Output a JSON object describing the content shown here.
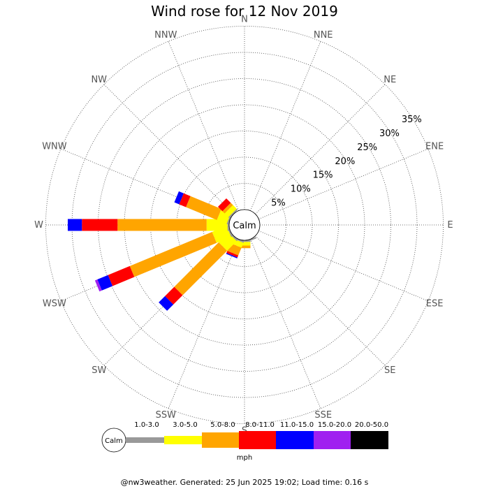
{
  "title": "Wind rose for 12 Nov 2019",
  "footer": "@nw3weather. Generated: 25 Jun 2025 19:02; Load time: 0.16 s",
  "chart_data": {
    "type": "windrose",
    "title": "Wind rose for 12 Nov 2019",
    "calm_label": "Calm",
    "units": "mph",
    "directions": [
      "N",
      "NNE",
      "NE",
      "ENE",
      "E",
      "ESE",
      "SE",
      "SSE",
      "S",
      "SSW",
      "SW",
      "WSW",
      "W",
      "WNW",
      "NW",
      "NNW"
    ],
    "radial_ticks": [
      "5%",
      "10%",
      "15%",
      "20%",
      "25%",
      "30%",
      "35%"
    ],
    "radial_values": [
      5,
      10,
      15,
      20,
      25,
      30,
      35
    ],
    "speed_bins": [
      {
        "label": "1.0-3.0",
        "color": "#999999"
      },
      {
        "label": "3.0-5.0",
        "color": "#ffff00"
      },
      {
        "label": "5.0-8.0",
        "color": "#ffa500"
      },
      {
        "label": "8.0-11.0",
        "color": "#ff0000"
      },
      {
        "label": "11.0-15.0",
        "color": "#0000ff"
      },
      {
        "label": "15.0-20.0",
        "color": "#a020f0"
      },
      {
        "label": "20.0-50.0",
        "color": "#000000"
      }
    ],
    "series_percent": {
      "N": [
        0,
        0,
        0,
        0,
        0,
        0,
        0
      ],
      "NNE": [
        0,
        0,
        0,
        0,
        0,
        0,
        0
      ],
      "NE": [
        0,
        0,
        0,
        0,
        0,
        0,
        0
      ],
      "ENE": [
        0,
        0,
        0,
        0,
        0,
        0,
        0
      ],
      "E": [
        0,
        0,
        0,
        0,
        0,
        0,
        0
      ],
      "ESE": [
        0,
        0,
        0,
        0,
        0,
        0,
        0
      ],
      "SE": [
        0,
        0,
        0,
        0,
        0,
        0,
        0
      ],
      "SSE": [
        0.3,
        0,
        0,
        0,
        0,
        0,
        0
      ],
      "S": [
        0.3,
        0.7,
        0.5,
        0,
        0,
        0,
        0
      ],
      "SSW": [
        0.3,
        1,
        1.6,
        0.4,
        0.2,
        0,
        0
      ],
      "SW": [
        0.3,
        2.6,
        12,
        2.5,
        1.7,
        0,
        0
      ],
      "WSW": [
        0.3,
        3,
        17,
        4.5,
        2.2,
        0.5,
        0
      ],
      "W": [
        0.3,
        4,
        17,
        6.8,
        2.7,
        0,
        0
      ],
      "WNW": [
        0.3,
        2,
        6.4,
        1.4,
        1,
        0,
        0
      ],
      "NW": [
        0.3,
        1,
        0.6,
        1.2,
        0,
        0,
        0
      ],
      "NNW": [
        0,
        0,
        0,
        0,
        0,
        0,
        0
      ]
    }
  }
}
